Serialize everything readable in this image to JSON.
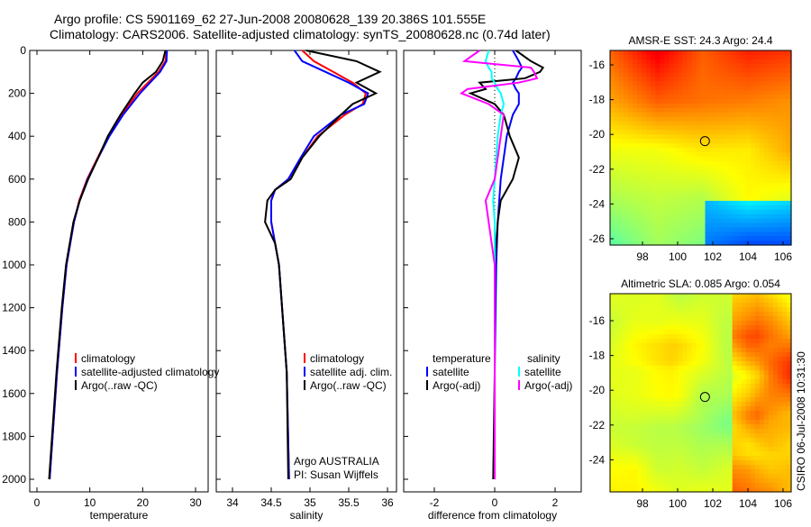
{
  "header": {
    "title1": "Argo profile: CS 5901169_62 27-Jun-2008 20080628_139 20.386S 101.555E",
    "title2": "Climatology: CARS2006. Satellite-adjusted climatology: synTS_20080628.nc (0.74d later)"
  },
  "side_label": "CSIRO 06-Jul-2008 10:31:30",
  "chart_data": [
    {
      "type": "line",
      "xlabel": "temperature",
      "ylabel": "",
      "xlim": [
        -2,
        32
      ],
      "ylim": [
        2050,
        0
      ],
      "xticks": [
        0,
        10,
        20,
        30
      ],
      "yticks": [
        0,
        200,
        400,
        600,
        800,
        1000,
        1200,
        1400,
        1600,
        1800,
        2000
      ],
      "legend": [
        "climatology",
        "satellite-adjusted climatology",
        "Argo(..raw -QC)"
      ],
      "depth": [
        0,
        50,
        100,
        150,
        200,
        300,
        400,
        500,
        600,
        700,
        800,
        1000,
        1200,
        1500,
        2000
      ],
      "series": [
        {
          "name": "climatology",
          "color": "#ff0000",
          "values": [
            24.5,
            24.3,
            23.0,
            21.0,
            19.0,
            16.0,
            13.5,
            11.5,
            9.5,
            8.0,
            7.0,
            5.6,
            4.8,
            3.8,
            2.4
          ]
        },
        {
          "name": "satellite-adjusted climatology",
          "color": "#0000ff",
          "values": [
            24.6,
            24.5,
            23.3,
            21.4,
            19.5,
            16.3,
            13.7,
            11.6,
            9.6,
            8.1,
            7.0,
            5.6,
            4.8,
            3.8,
            2.4
          ]
        },
        {
          "name": "Argo(..raw -QC)",
          "color": "#000000",
          "values": [
            24.3,
            23.8,
            22.5,
            20.0,
            18.5,
            15.8,
            13.4,
            11.6,
            9.7,
            8.1,
            6.9,
            5.5,
            4.7,
            3.7,
            2.3
          ]
        }
      ]
    },
    {
      "type": "line",
      "xlabel": "salinity",
      "xlim": [
        33.6,
        36.1
      ],
      "xticks": [
        34,
        34.5,
        35,
        35.5,
        36
      ],
      "legend": [
        "climatology",
        "satellite adj. clim.",
        "Argo(..raw -QC)"
      ],
      "annotation": [
        "Argo AUSTRALIA",
        "PI: Susan Wijffels"
      ],
      "depth": [
        0,
        50,
        100,
        150,
        200,
        250,
        300,
        400,
        500,
        600,
        650,
        700,
        800,
        900,
        1000,
        1500,
        2000
      ],
      "series": [
        {
          "name": "climatology",
          "color": "#ff0000",
          "values": [
            34.9,
            35.05,
            35.3,
            35.55,
            35.72,
            35.68,
            35.45,
            35.1,
            34.9,
            34.75,
            34.55,
            34.5,
            34.5,
            34.55,
            34.6,
            34.7,
            34.73
          ]
        },
        {
          "name": "satellite adj. clim.",
          "color": "#0000ff",
          "values": [
            34.8,
            34.9,
            35.2,
            35.5,
            35.75,
            35.7,
            35.4,
            35.05,
            34.88,
            34.72,
            34.55,
            34.5,
            34.5,
            34.55,
            34.6,
            34.7,
            34.73
          ]
        },
        {
          "name": "Argo(..raw -QC)",
          "color": "#000000",
          "values": [
            34.95,
            35.6,
            35.9,
            35.6,
            35.85,
            35.55,
            35.4,
            35.12,
            34.9,
            34.75,
            34.55,
            34.45,
            34.42,
            34.55,
            34.6,
            34.7,
            34.72
          ]
        }
      ]
    },
    {
      "type": "line",
      "xlabel": "difference from climatology",
      "xlim": [
        -3,
        3
      ],
      "xticks": [
        -2,
        0,
        2
      ],
      "legend_title_left": "temperature",
      "legend_title_right": "salinity",
      "legend": [
        "satellite",
        "Argo(-adj)",
        "satellite",
        "Argo(-adj)"
      ],
      "depth": [
        0,
        50,
        80,
        100,
        130,
        150,
        180,
        200,
        250,
        300,
        400,
        500,
        600,
        700,
        800,
        1000,
        1500,
        2000
      ],
      "series": [
        {
          "name": "temperature satellite",
          "color": "#0000ff",
          "values": [
            0.6,
            0.8,
            0.9,
            0.8,
            0.7,
            0.6,
            0.7,
            0.8,
            0.8,
            0.6,
            0.4,
            0.3,
            0.2,
            0.15,
            0.1,
            0.05,
            0,
            0
          ]
        },
        {
          "name": "temperature Argo(-adj)",
          "color": "#000000",
          "values": [
            0.7,
            1.2,
            1.6,
            1.5,
            1.0,
            -0.5,
            -0.3,
            -0.8,
            0.0,
            0.3,
            0.5,
            0.8,
            0.6,
            0.2,
            0.1,
            0.0,
            0,
            -0.05
          ]
        },
        {
          "name": "salinity satellite",
          "color": "#00ffff",
          "values": [
            -0.2,
            -0.3,
            -0.2,
            -0.1,
            -0.1,
            0.0,
            0.1,
            0.2,
            0.3,
            0.2,
            0.1,
            0.05,
            0.0,
            -0.05,
            0.0,
            0.0,
            0,
            0
          ]
        },
        {
          "name": "salinity Argo(-adj)",
          "color": "#ff00ff",
          "values": [
            -0.5,
            -1.0,
            1.2,
            1.3,
            1.4,
            0.8,
            -0.9,
            -1.1,
            -0.2,
            0.3,
            0.2,
            0.1,
            0.0,
            -0.3,
            -0.2,
            0.0,
            0,
            0
          ]
        }
      ]
    },
    {
      "type": "heatmap",
      "title": "AMSR-E SST: 24.3 Argo: 24.4",
      "xticks": [
        98,
        100,
        102,
        104,
        106
      ],
      "yticks": [
        -16,
        -18,
        -20,
        -22,
        -24,
        -26
      ],
      "marker": [
        101.555,
        -20.386
      ]
    },
    {
      "type": "heatmap",
      "title": "Altimetric SLA: 0.085 Argo: 0.054",
      "xticks": [
        98,
        100,
        102,
        104,
        106
      ],
      "yticks": [
        -16,
        -18,
        -20,
        -22,
        -24,
        -26
      ],
      "marker": [
        101.555,
        -20.386
      ]
    }
  ]
}
